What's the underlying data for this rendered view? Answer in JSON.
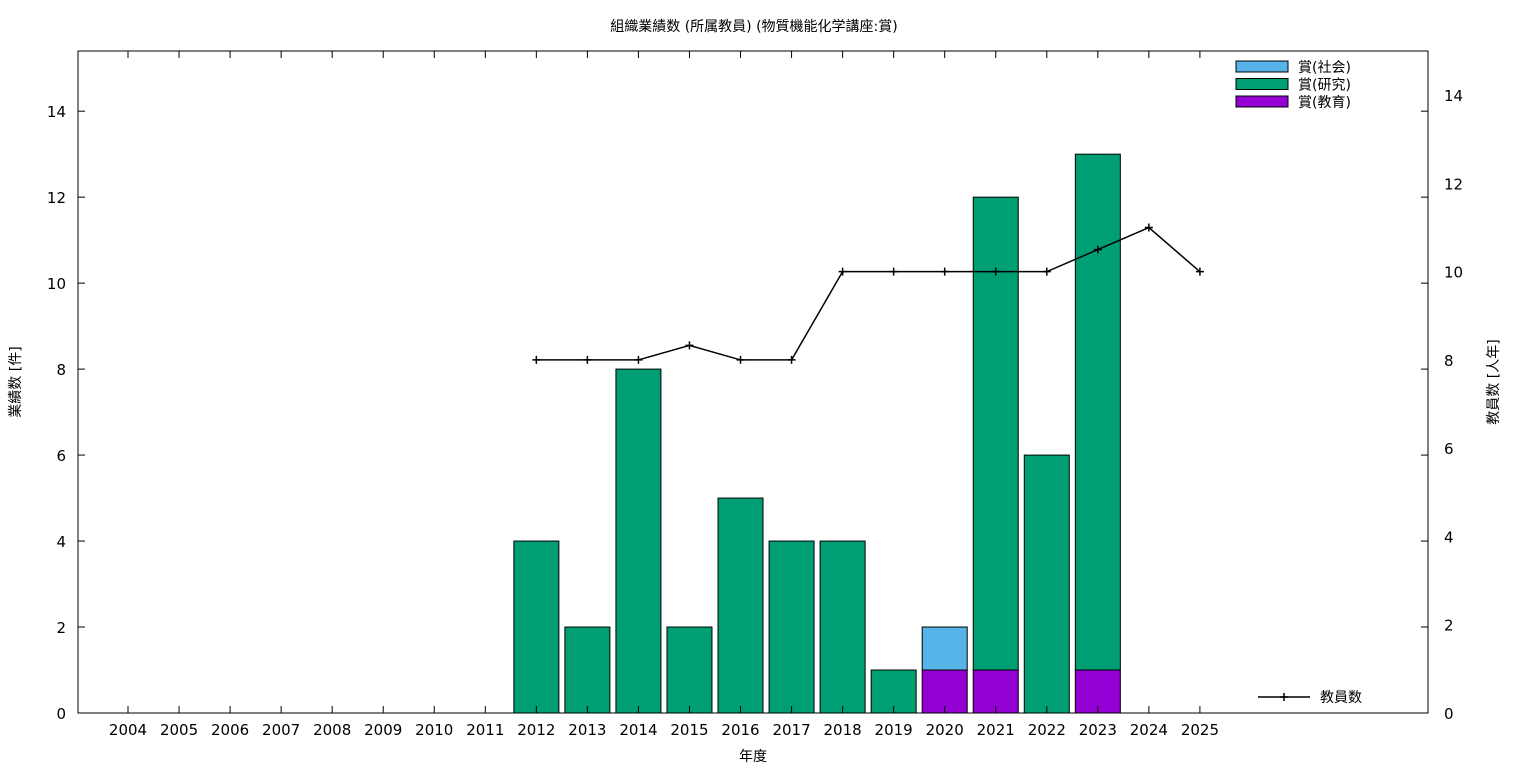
{
  "chart_data": {
    "type": "bar",
    "stacked": true,
    "title": "組織業績数 (所属教員) (物質機能化学講座:賞)",
    "xlabel": "年度",
    "ylabel": "業績数 [件]",
    "y2label": "教員数 [人年]",
    "ylim": [
      0,
      15.4
    ],
    "y2lim": [
      0,
      15.0
    ],
    "yticks": [
      0,
      2,
      4,
      6,
      8,
      10,
      12,
      14
    ],
    "y2ticks": [
      0,
      2,
      4,
      6,
      8,
      10,
      12,
      14
    ],
    "grid": false,
    "legend_position": "top-right",
    "line_legend_position": "bottom-right",
    "categories": [
      "2004",
      "2005",
      "2006",
      "2007",
      "2008",
      "2009",
      "2010",
      "2011",
      "2012",
      "2013",
      "2014",
      "2015",
      "2016",
      "2017",
      "2018",
      "2019",
      "2020",
      "2021",
      "2022",
      "2023",
      "2024",
      "2025"
    ],
    "series": [
      {
        "name": "賞(教育)",
        "color": "#9400d3",
        "values": [
          0,
          0,
          0,
          0,
          0,
          0,
          0,
          0,
          0,
          0,
          0,
          0,
          0,
          0,
          0,
          0,
          1,
          1,
          0,
          1,
          0,
          0
        ]
      },
      {
        "name": "賞(研究)",
        "color": "#009e73",
        "values": [
          0,
          0,
          0,
          0,
          0,
          0,
          0,
          0,
          4,
          2,
          8,
          2,
          5,
          4,
          4,
          1,
          0,
          11,
          6,
          12,
          0,
          0
        ]
      },
      {
        "name": "賞(社会)",
        "color": "#56b4e9",
        "values": [
          0,
          0,
          0,
          0,
          0,
          0,
          0,
          0,
          0,
          0,
          0,
          0,
          0,
          0,
          0,
          0,
          1,
          0,
          0,
          0,
          0,
          0
        ]
      }
    ],
    "legend_order": [
      "賞(社会)",
      "賞(研究)",
      "賞(教育)"
    ],
    "line_series": {
      "name": "教員数",
      "axis": "right",
      "color": "#000000",
      "x": [
        "2012",
        "2013",
        "2014",
        "2015",
        "2016",
        "2017",
        "2018",
        "2019",
        "2020",
        "2021",
        "2022",
        "2023",
        "2024",
        "2025"
      ],
      "values": [
        8,
        8,
        8,
        8.33,
        8,
        8,
        10,
        10,
        10,
        10,
        10,
        10.5,
        11,
        10
      ]
    }
  }
}
